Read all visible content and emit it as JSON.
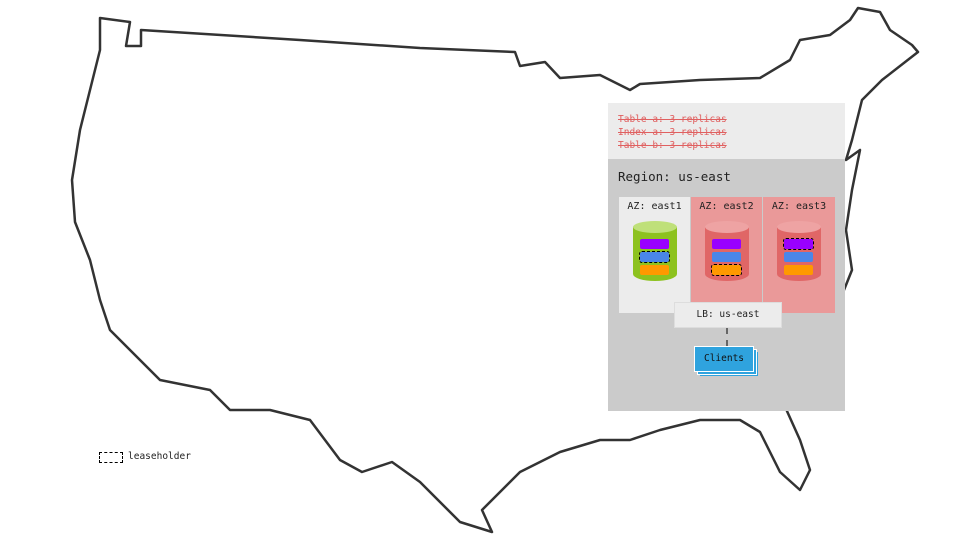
{
  "header": {
    "lines": [
      "Table a: 3 replicas",
      "Index a: 3 replicas",
      "Table b: 3 replicas"
    ]
  },
  "region": {
    "label": "Region: us-east"
  },
  "zones": [
    {
      "label": "AZ: east1",
      "state": "healthy",
      "leaseholder_bar": "blue"
    },
    {
      "label": "AZ: east2",
      "state": "failed",
      "leaseholder_bar": "orange"
    },
    {
      "label": "AZ: east3",
      "state": "failed",
      "leaseholder_bar": "purple"
    }
  ],
  "load_balancer": {
    "label": "LB: us-east"
  },
  "clients": {
    "label": "Clients"
  },
  "legend": {
    "label": "leaseholder"
  },
  "colors": {
    "healthy": "#8dc21f",
    "failed": "#e06666",
    "purple": "#9900ff",
    "blue": "#4a86e8",
    "orange": "#ff9900",
    "clients": "#2fa3de"
  }
}
